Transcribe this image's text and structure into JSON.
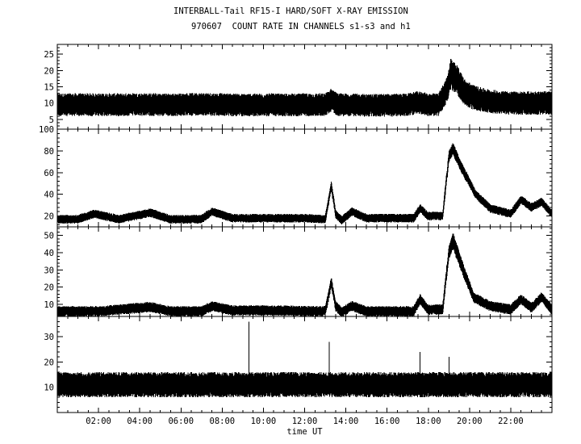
{
  "title_lines": [
    "INTERBALL-Tail RF15-I HARD/SOFT X-RAY EMISSION",
    "970607  COUNT RATE IN CHANNELS s1-s3 and h1"
  ],
  "chart_data": {
    "type": "line",
    "title": "INTERBALL-Tail RF15-I HARD/SOFT X-RAY EMISSION",
    "subtitle": "970607  COUNT RATE IN CHANNELS s1-s3 and h1",
    "xlabel": "time UT",
    "xlim": [
      0,
      24
    ],
    "x_ticks": [
      2,
      4,
      6,
      8,
      10,
      12,
      14,
      16,
      18,
      20,
      22
    ],
    "x_tick_labels": [
      "02:00",
      "04:00",
      "06:00",
      "08:00",
      "10:00",
      "12:00",
      "14:00",
      "16:00",
      "18:00",
      "20:00",
      "22:00"
    ],
    "grid": false,
    "panels": [
      {
        "ylim": [
          2,
          28
        ],
        "y_ticks": [
          5,
          10,
          15,
          20,
          25
        ],
        "x": [
          0,
          1,
          2,
          3,
          4,
          5,
          6,
          7,
          8,
          9,
          10,
          11,
          12,
          13,
          13.3,
          13.6,
          14,
          15,
          16,
          17,
          17.5,
          18,
          18.5,
          18.9,
          19.1,
          19.4,
          19.8,
          20.3,
          21,
          22,
          23,
          24
        ],
        "y": [
          9.5,
          9.5,
          9.5,
          9.5,
          9.6,
          9.5,
          9.5,
          9.7,
          9.5,
          9.4,
          9.5,
          9.4,
          9.5,
          9.5,
          11,
          9.5,
          9.5,
          9.3,
          9.3,
          9.5,
          10.2,
          9.5,
          9.5,
          14,
          19,
          17,
          13,
          11.5,
          10.5,
          10,
          10,
          10
        ],
        "noise": [
          3.5,
          3.5,
          3.5,
          3.5,
          3.5,
          3.5,
          3.5,
          3.5,
          3.5,
          3.5,
          3.5,
          3.5,
          3.5,
          3.5,
          3.5,
          3.5,
          3.5,
          3.5,
          3.5,
          3.5,
          3.5,
          3.5,
          3.5,
          4,
          5,
          4.5,
          4,
          3.8,
          3.6,
          3.6,
          3.6,
          3.6
        ]
      },
      {
        "ylim": [
          10,
          100
        ],
        "y_ticks": [
          20,
          40,
          60,
          80,
          100
        ],
        "x": [
          0,
          1,
          1.8,
          3,
          4.5,
          5.5,
          7,
          7.5,
          8.5,
          10,
          12,
          13,
          13.3,
          13.5,
          13.8,
          14.3,
          15,
          16,
          17.3,
          17.6,
          18,
          18.7,
          19,
          19.2,
          19.6,
          20.3,
          21,
          22,
          22.5,
          23,
          23.5,
          24
        ],
        "y": [
          17,
          17,
          22,
          17,
          23,
          17,
          17,
          24,
          18,
          18,
          18,
          17,
          48,
          22,
          16,
          24,
          18,
          18,
          18,
          27,
          20,
          20,
          75,
          82,
          65,
          40,
          27,
          22,
          35,
          28,
          33,
          22
        ],
        "noise": [
          4,
          4,
          4,
          4,
          4,
          4,
          4,
          4,
          4,
          4,
          4,
          4,
          4,
          4,
          4,
          4,
          4,
          4,
          4,
          4,
          4,
          4,
          5,
          6,
          5,
          4,
          4,
          4,
          4,
          4,
          4,
          4
        ]
      },
      {
        "ylim": [
          3,
          55
        ],
        "y_ticks": [
          10,
          20,
          30,
          40,
          50
        ],
        "x": [
          0,
          2,
          4.5,
          5.5,
          7,
          7.5,
          8.5,
          10,
          13,
          13.3,
          13.5,
          13.8,
          14.3,
          15,
          16,
          17.3,
          17.6,
          18,
          18.7,
          19,
          19.2,
          19.6,
          20.2,
          21,
          22,
          22.5,
          23,
          23.5,
          24
        ],
        "y": [
          6,
          6,
          8.5,
          6,
          6,
          9,
          6.5,
          6.5,
          6,
          23,
          9,
          5.5,
          9,
          6,
          6,
          6,
          13,
          7,
          7,
          40,
          47,
          33,
          14,
          9,
          7,
          13,
          8,
          14,
          7
        ],
        "noise": [
          3,
          3,
          3,
          3,
          3,
          3,
          3,
          3,
          3,
          3,
          3,
          3,
          3,
          3,
          3,
          3,
          3,
          3,
          3,
          4,
          5,
          4,
          3,
          3,
          3,
          3,
          3,
          3,
          3
        ]
      },
      {
        "ylim": [
          0,
          38
        ],
        "y_ticks": [
          10,
          20,
          30
        ],
        "x": [
          0,
          24
        ],
        "y": [
          11,
          11
        ],
        "noise": [
          5,
          5
        ],
        "spikes": [
          [
            9.3,
            36
          ],
          [
            13.2,
            28
          ],
          [
            17.6,
            24
          ],
          [
            19.0,
            22
          ]
        ]
      }
    ]
  }
}
